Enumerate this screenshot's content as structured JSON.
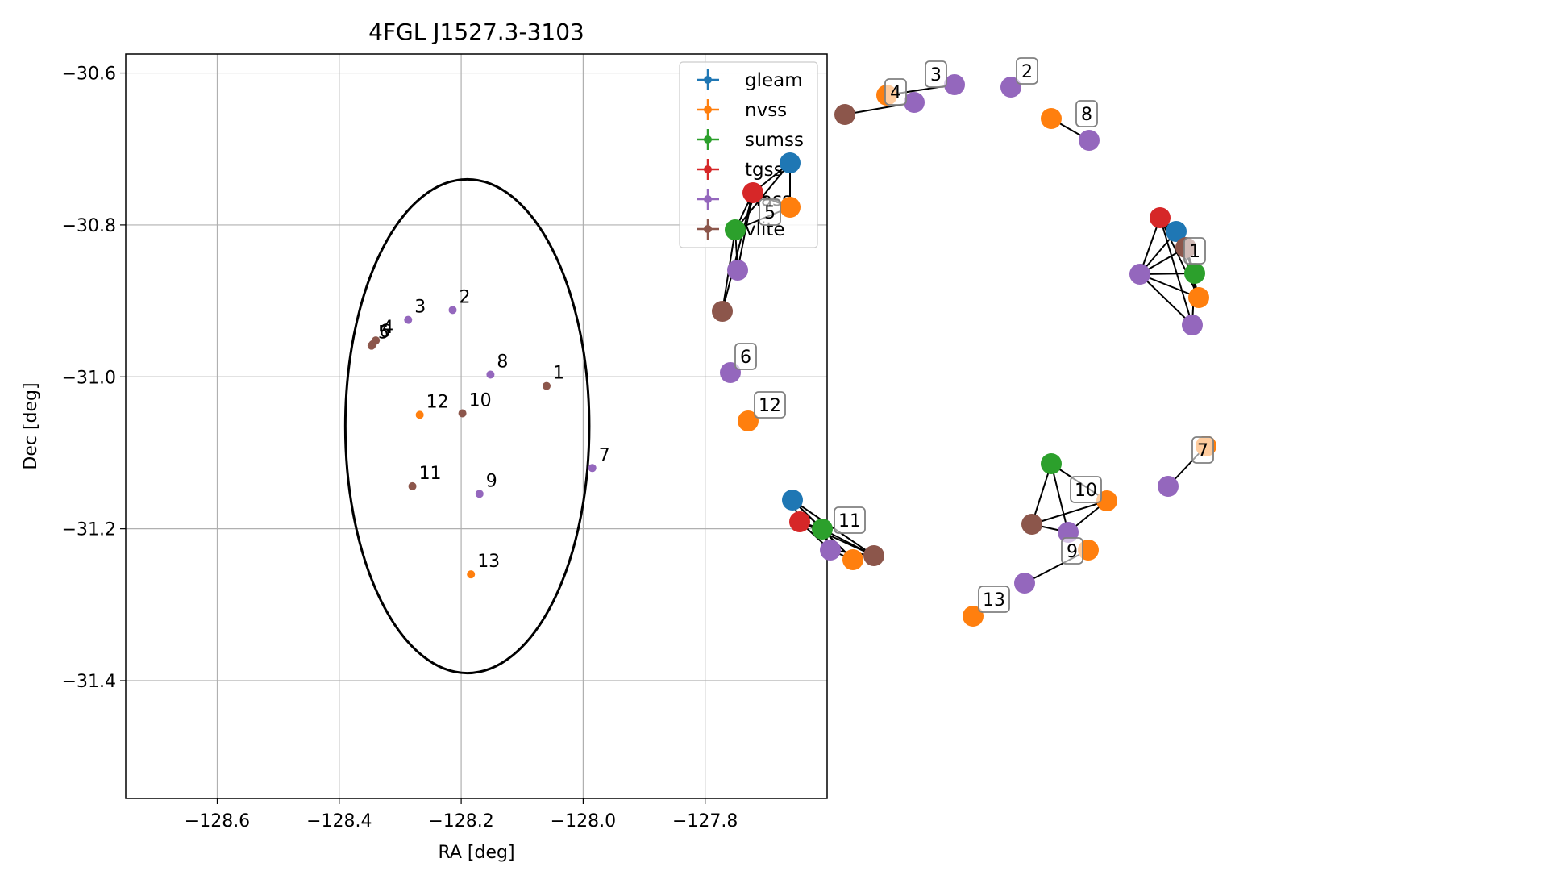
{
  "chart_data": [
    {
      "type": "scatter",
      "title": "4FGL J1527.3-3103",
      "xlabel": "RA [deg]",
      "ylabel": "Dec [deg]",
      "xlim": [
        -128.75,
        -127.6
      ],
      "ylim": [
        -31.555,
        -30.575
      ],
      "xticks": [
        -128.6,
        -128.4,
        -128.2,
        -128.0,
        -127.8
      ],
      "xtick_labels": [
        "−128.6",
        "−128.4",
        "−128.2",
        "−128.0",
        "−127.8"
      ],
      "yticks": [
        -30.6,
        -30.8,
        -31.0,
        -31.2,
        -31.4
      ],
      "ytick_labels": [
        "−30.6",
        "−30.8",
        "−31.0",
        "−31.2",
        "−31.4"
      ],
      "grid": true,
      "legend_position": "top-right",
      "series": [
        {
          "name": "gleam",
          "color": "#1f77b4",
          "points": []
        },
        {
          "name": "nvss",
          "color": "#ff7f0e",
          "points": [
            {
              "label": "12",
              "x": -128.268,
              "y": -31.05
            },
            {
              "label": "13",
              "x": -128.184,
              "y": -31.26
            }
          ]
        },
        {
          "name": "sumss",
          "color": "#2ca02c",
          "points": []
        },
        {
          "name": "tgss",
          "color": "#d62728",
          "points": []
        },
        {
          "name": "vlass",
          "color": "#9467bd",
          "points": [
            {
              "label": "3",
              "x": -128.287,
              "y": -30.925
            },
            {
              "label": "2",
              "x": -128.214,
              "y": -30.912
            },
            {
              "label": "8",
              "x": -128.152,
              "y": -30.997
            },
            {
              "label": "7",
              "x": -127.985,
              "y": -31.12
            },
            {
              "label": "9",
              "x": -128.17,
              "y": -31.154
            }
          ]
        },
        {
          "name": "vlite",
          "color": "#8c564b",
          "points": [
            {
              "label": "5",
              "x": -128.347,
              "y": -30.959
            },
            {
              "label": "6",
              "x": -128.345,
              "y": -30.957
            },
            {
              "label": "4",
              "x": -128.34,
              "y": -30.952
            },
            {
              "label": "1",
              "x": -128.06,
              "y": -31.012
            },
            {
              "label": "10",
              "x": -128.198,
              "y": -31.048
            },
            {
              "label": "11",
              "x": -128.28,
              "y": -31.144
            }
          ]
        }
      ],
      "ellipse": {
        "center_ra": -128.19,
        "center_dec": -31.065,
        "half_width_ra": 0.2,
        "half_height_dec": 0.325
      }
    },
    {
      "type": "network",
      "groups": [
        {
          "label": "1",
          "nodes": [
            {
              "color": "#d62728",
              "p": [
                1439,
                270
              ]
            },
            {
              "color": "#1f77b4",
              "p": [
                1459,
                287
              ]
            },
            {
              "color": "#8c564b",
              "p": [
                1471,
                307
              ]
            },
            {
              "color": "#2ca02c",
              "p": [
                1482,
                339
              ]
            },
            {
              "color": "#ff7f0e",
              "p": [
                1487,
                369
              ]
            },
            {
              "color": "#9467bd",
              "p": [
                1414,
                340
              ]
            },
            {
              "color": "#9467bd",
              "p": [
                1479,
                403
              ]
            }
          ]
        },
        {
          "label": "2",
          "nodes": [
            {
              "color": "#9467bd",
              "p": [
                1254,
                108
              ]
            }
          ]
        },
        {
          "label": "3",
          "nodes": [
            {
              "color": "#9467bd",
              "p": [
                1184,
                105
              ]
            },
            {
              "color": "#9467bd",
              "p": [
                1134,
                127
              ]
            }
          ]
        },
        {
          "label": "4",
          "nodes": [
            {
              "color": "#ff7f0e",
              "p": [
                1100,
                118
              ]
            },
            {
              "color": "#8c564b",
              "p": [
                1048,
                142
              ]
            }
          ]
        },
        {
          "label": "5",
          "nodes": [
            {
              "color": "#1f77b4",
              "p": [
                980,
                202
              ]
            },
            {
              "color": "#d62728",
              "p": [
                934,
                239
              ]
            },
            {
              "color": "#ff7f0e",
              "p": [
                980,
                257
              ]
            },
            {
              "color": "#2ca02c",
              "p": [
                912,
                285
              ]
            },
            {
              "color": "#9467bd",
              "p": [
                915,
                335
              ]
            },
            {
              "color": "#8c564b",
              "p": [
                896,
                386
              ]
            }
          ]
        },
        {
          "label": "6",
          "nodes": [
            {
              "color": "#9467bd",
              "p": [
                906,
                462
              ]
            }
          ]
        },
        {
          "label": "7",
          "nodes": [
            {
              "color": "#ff7f0e",
              "p": [
                1496,
                553
              ]
            },
            {
              "color": "#9467bd",
              "p": [
                1449,
                603
              ]
            }
          ]
        },
        {
          "label": "8",
          "nodes": [
            {
              "color": "#ff7f0e",
              "p": [
                1304,
                147
              ]
            },
            {
              "color": "#9467bd",
              "p": [
                1351,
                174
              ]
            }
          ]
        },
        {
          "label": "9",
          "nodes": [
            {
              "color": "#ff7f0e",
              "p": [
                1350,
                682
              ]
            },
            {
              "color": "#9467bd",
              "p": [
                1271,
                723
              ]
            }
          ]
        },
        {
          "label": "10",
          "nodes": [
            {
              "color": "#2ca02c",
              "p": [
                1304,
                575
              ]
            },
            {
              "color": "#ff7f0e",
              "p": [
                1373,
                621
              ]
            },
            {
              "color": "#8c564b",
              "p": [
                1280,
                650
              ]
            },
            {
              "color": "#9467bd",
              "p": [
                1325,
                660
              ]
            }
          ]
        },
        {
          "label": "11",
          "nodes": [
            {
              "color": "#1f77b4",
              "p": [
                983,
                620
              ]
            },
            {
              "color": "#d62728",
              "p": [
                992,
                647
              ]
            },
            {
              "color": "#2ca02c",
              "p": [
                1020,
                656
              ]
            },
            {
              "color": "#9467bd",
              "p": [
                1030,
                682
              ]
            },
            {
              "color": "#ff7f0e",
              "p": [
                1058,
                694
              ]
            },
            {
              "color": "#8c564b",
              "p": [
                1084,
                689
              ]
            }
          ]
        },
        {
          "label": "12",
          "nodes": [
            {
              "color": "#ff7f0e",
              "p": [
                928,
                522
              ]
            }
          ]
        },
        {
          "label": "13",
          "nodes": [
            {
              "color": "#ff7f0e",
              "p": [
                1207,
                764
              ]
            }
          ]
        }
      ],
      "edges": [
        [
          [
            1439,
            270
          ],
          [
            1459,
            287
          ]
        ],
        [
          [
            1439,
            270
          ],
          [
            1414,
            340
          ]
        ],
        [
          [
            1439,
            270
          ],
          [
            1471,
            307
          ]
        ],
        [
          [
            1439,
            270
          ],
          [
            1479,
            403
          ]
        ],
        [
          [
            1439,
            270
          ],
          [
            1487,
            369
          ]
        ],
        [
          [
            1459,
            287
          ],
          [
            1482,
            339
          ]
        ],
        [
          [
            1459,
            287
          ],
          [
            1414,
            340
          ]
        ],
        [
          [
            1459,
            287
          ],
          [
            1487,
            369
          ]
        ],
        [
          [
            1471,
            307
          ],
          [
            1482,
            339
          ]
        ],
        [
          [
            1471,
            307
          ],
          [
            1487,
            369
          ]
        ],
        [
          [
            1414,
            340
          ],
          [
            1471,
            307
          ]
        ],
        [
          [
            1414,
            340
          ],
          [
            1482,
            339
          ]
        ],
        [
          [
            1414,
            340
          ],
          [
            1487,
            369
          ]
        ],
        [
          [
            1414,
            340
          ],
          [
            1479,
            403
          ]
        ],
        [
          [
            1482,
            339
          ],
          [
            1479,
            403
          ]
        ],
        [
          [
            1184,
            105
          ],
          [
            1100,
            118
          ]
        ],
        [
          [
            1134,
            127
          ],
          [
            1048,
            142
          ]
        ],
        [
          [
            1304,
            147
          ],
          [
            1351,
            174
          ]
        ],
        [
          [
            980,
            202
          ],
          [
            934,
            239
          ]
        ],
        [
          [
            980,
            202
          ],
          [
            980,
            257
          ]
        ],
        [
          [
            980,
            202
          ],
          [
            912,
            285
          ]
        ],
        [
          [
            934,
            239
          ],
          [
            980,
            257
          ]
        ],
        [
          [
            934,
            239
          ],
          [
            912,
            285
          ]
        ],
        [
          [
            934,
            239
          ],
          [
            915,
            335
          ]
        ],
        [
          [
            912,
            285
          ],
          [
            980,
            257
          ]
        ],
        [
          [
            912,
            285
          ],
          [
            915,
            335
          ]
        ],
        [
          [
            912,
            285
          ],
          [
            896,
            386
          ]
        ],
        [
          [
            934,
            239
          ],
          [
            896,
            386
          ]
        ],
        [
          [
            1496,
            553
          ],
          [
            1449,
            603
          ]
        ],
        [
          [
            1350,
            682
          ],
          [
            1271,
            723
          ]
        ],
        [
          [
            1304,
            575
          ],
          [
            1280,
            650
          ]
        ],
        [
          [
            1304,
            575
          ],
          [
            1325,
            660
          ]
        ],
        [
          [
            1304,
            575
          ],
          [
            1373,
            621
          ]
        ],
        [
          [
            1280,
            650
          ],
          [
            1373,
            621
          ]
        ],
        [
          [
            1280,
            650
          ],
          [
            1325,
            660
          ]
        ],
        [
          [
            1325,
            660
          ],
          [
            1373,
            621
          ]
        ],
        [
          [
            983,
            620
          ],
          [
            992,
            647
          ]
        ],
        [
          [
            983,
            620
          ],
          [
            1020,
            656
          ]
        ],
        [
          [
            983,
            620
          ],
          [
            1084,
            689
          ]
        ],
        [
          [
            983,
            620
          ],
          [
            1058,
            694
          ]
        ],
        [
          [
            992,
            647
          ],
          [
            1020,
            656
          ]
        ],
        [
          [
            992,
            647
          ],
          [
            1030,
            682
          ]
        ],
        [
          [
            992,
            647
          ],
          [
            1084,
            689
          ]
        ],
        [
          [
            1020,
            656
          ],
          [
            1084,
            689
          ]
        ],
        [
          [
            1020,
            656
          ],
          [
            1058,
            694
          ]
        ],
        [
          [
            1030,
            682
          ],
          [
            1084,
            689
          ]
        ],
        [
          [
            1030,
            682
          ],
          [
            1058,
            694
          ]
        ],
        [
          [
            1020,
            656
          ],
          [
            1030,
            682
          ]
        ]
      ],
      "label_positions": {
        "1": [
          1482,
          311
        ],
        "2": [
          1274,
          88
        ],
        "3": [
          1161,
          92
        ],
        "4": [
          1111,
          114
        ],
        "5": [
          955,
          263
        ],
        "6": [
          925,
          442
        ],
        "7": [
          1492,
          558
        ],
        "8": [
          1348,
          141
        ],
        "9": [
          1330,
          683
        ],
        "10": [
          1347,
          607
        ],
        "11": [
          1054,
          645
        ],
        "12": [
          955,
          502
        ],
        "13": [
          1233,
          743
        ]
      }
    }
  ]
}
